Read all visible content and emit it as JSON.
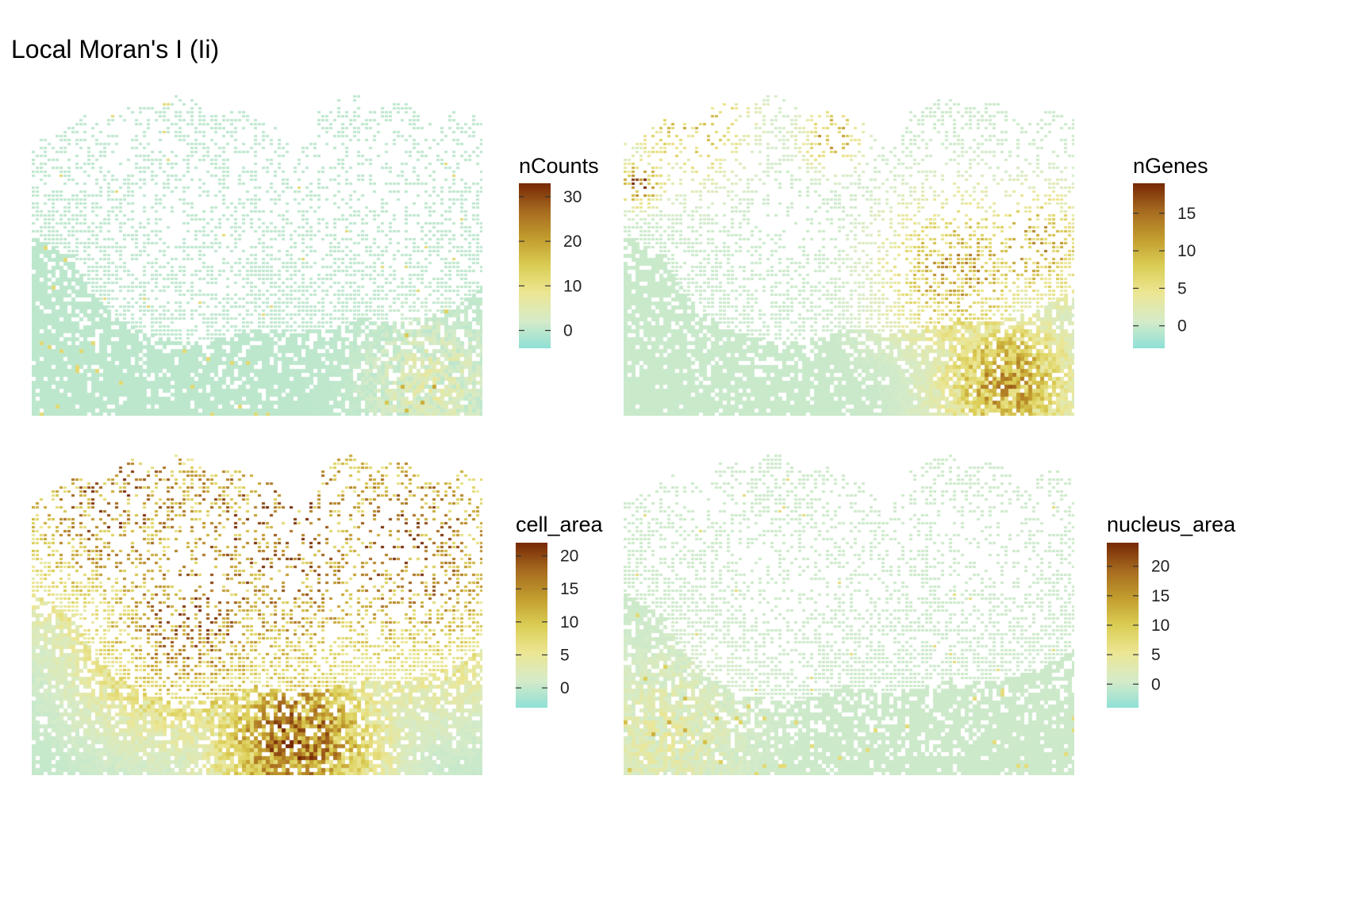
{
  "title": "Local Moran's I (Ii)",
  "colors": {
    "colorscale": [
      "#8fe0d6",
      "#d6ebc8",
      "#ece694",
      "#dacd54",
      "#c29c2e",
      "#a66a1f",
      "#762805"
    ],
    "background_cell": "#d6ebc8"
  },
  "chart_data": [
    {
      "type": "heatmap",
      "panel": "top-left",
      "legend_title": "nCounts",
      "scale_min": -4,
      "scale_max": 33,
      "ticks": [
        0,
        10,
        20,
        30
      ],
      "tick_labels": [
        "0",
        "10",
        "20",
        "30"
      ],
      "pattern": "sparse-hotspots",
      "value_range": [
        -4,
        33
      ]
    },
    {
      "type": "heatmap",
      "panel": "top-right",
      "legend_title": "nGenes",
      "scale_min": -3,
      "scale_max": 19,
      "ticks": [
        0,
        5,
        10,
        15
      ],
      "tick_labels": [
        "0",
        "5",
        "10",
        "15"
      ],
      "pattern": "boundary-hotspots",
      "value_range": [
        -3,
        19
      ]
    },
    {
      "type": "heatmap",
      "panel": "bottom-left",
      "legend_title": "cell_area",
      "scale_min": -3,
      "scale_max": 22,
      "ticks": [
        0,
        5,
        10,
        15,
        20
      ],
      "tick_labels": [
        "0",
        "5",
        "10",
        "15",
        "20"
      ],
      "pattern": "sparse-region-hotspots",
      "value_range": [
        -3,
        22
      ]
    },
    {
      "type": "heatmap",
      "panel": "bottom-right",
      "legend_title": "nucleus_area",
      "scale_min": -4,
      "scale_max": 24,
      "ticks": [
        0,
        5,
        10,
        15,
        20
      ],
      "tick_labels": [
        "0",
        "5",
        "10",
        "15",
        "20"
      ],
      "pattern": "mostly-flat",
      "value_range": [
        -4,
        24
      ]
    }
  ]
}
